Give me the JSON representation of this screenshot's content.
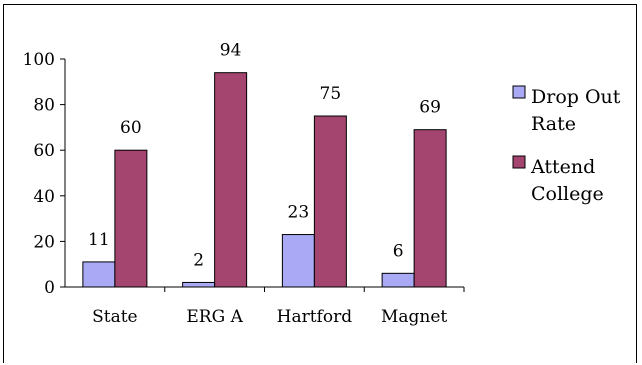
{
  "chart_data": {
    "type": "bar",
    "categories": [
      "State",
      "ERG A",
      "Hartford",
      "Magnet"
    ],
    "series": [
      {
        "name": "Drop Out Rate",
        "values": [
          11,
          2,
          23,
          6
        ],
        "color": "#A9A9F5"
      },
      {
        "name": "Attend College",
        "values": [
          60,
          94,
          75,
          69
        ],
        "color": "#A3456E"
      }
    ],
    "data_labels": [
      [
        "11",
        "2",
        "23",
        "6"
      ],
      [
        "60",
        "94",
        "75",
        "69"
      ]
    ],
    "yticks": [
      "0",
      "20",
      "40",
      "60",
      "80",
      "100"
    ],
    "ylim": [
      0,
      100
    ],
    "grid": false,
    "legend": {
      "placement": "right",
      "lines": [
        [
          "Drop Out",
          "Rate"
        ],
        [
          "Attend",
          "College"
        ]
      ]
    }
  }
}
